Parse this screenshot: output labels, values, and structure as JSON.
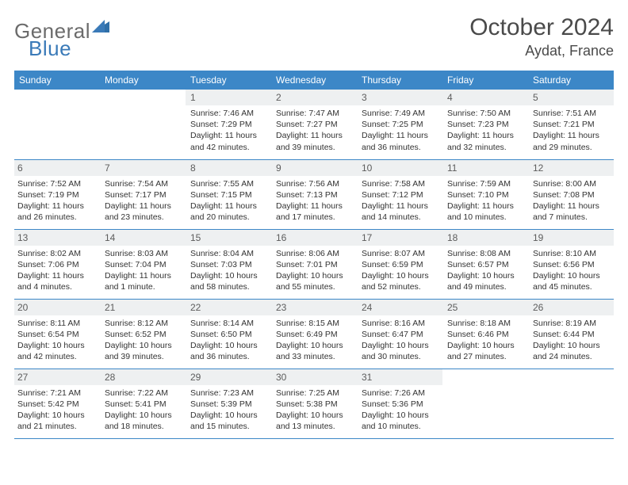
{
  "logo": {
    "text1": "General",
    "text2": "Blue"
  },
  "title": "October 2024",
  "location": "Aydat, France",
  "colors": {
    "header_bg": "#3c87c7",
    "header_text": "#ffffff",
    "daynum_bg": "#eef0f1",
    "border": "#3c87c7",
    "logo_gray": "#6b6b6b",
    "logo_blue": "#3a7ab8"
  },
  "days_of_week": [
    "Sunday",
    "Monday",
    "Tuesday",
    "Wednesday",
    "Thursday",
    "Friday",
    "Saturday"
  ],
  "weeks": [
    [
      null,
      null,
      {
        "n": "1",
        "sr": "Sunrise: 7:46 AM",
        "ss": "Sunset: 7:29 PM",
        "dl": "Daylight: 11 hours and 42 minutes."
      },
      {
        "n": "2",
        "sr": "Sunrise: 7:47 AM",
        "ss": "Sunset: 7:27 PM",
        "dl": "Daylight: 11 hours and 39 minutes."
      },
      {
        "n": "3",
        "sr": "Sunrise: 7:49 AM",
        "ss": "Sunset: 7:25 PM",
        "dl": "Daylight: 11 hours and 36 minutes."
      },
      {
        "n": "4",
        "sr": "Sunrise: 7:50 AM",
        "ss": "Sunset: 7:23 PM",
        "dl": "Daylight: 11 hours and 32 minutes."
      },
      {
        "n": "5",
        "sr": "Sunrise: 7:51 AM",
        "ss": "Sunset: 7:21 PM",
        "dl": "Daylight: 11 hours and 29 minutes."
      }
    ],
    [
      {
        "n": "6",
        "sr": "Sunrise: 7:52 AM",
        "ss": "Sunset: 7:19 PM",
        "dl": "Daylight: 11 hours and 26 minutes."
      },
      {
        "n": "7",
        "sr": "Sunrise: 7:54 AM",
        "ss": "Sunset: 7:17 PM",
        "dl": "Daylight: 11 hours and 23 minutes."
      },
      {
        "n": "8",
        "sr": "Sunrise: 7:55 AM",
        "ss": "Sunset: 7:15 PM",
        "dl": "Daylight: 11 hours and 20 minutes."
      },
      {
        "n": "9",
        "sr": "Sunrise: 7:56 AM",
        "ss": "Sunset: 7:13 PM",
        "dl": "Daylight: 11 hours and 17 minutes."
      },
      {
        "n": "10",
        "sr": "Sunrise: 7:58 AM",
        "ss": "Sunset: 7:12 PM",
        "dl": "Daylight: 11 hours and 14 minutes."
      },
      {
        "n": "11",
        "sr": "Sunrise: 7:59 AM",
        "ss": "Sunset: 7:10 PM",
        "dl": "Daylight: 11 hours and 10 minutes."
      },
      {
        "n": "12",
        "sr": "Sunrise: 8:00 AM",
        "ss": "Sunset: 7:08 PM",
        "dl": "Daylight: 11 hours and 7 minutes."
      }
    ],
    [
      {
        "n": "13",
        "sr": "Sunrise: 8:02 AM",
        "ss": "Sunset: 7:06 PM",
        "dl": "Daylight: 11 hours and 4 minutes."
      },
      {
        "n": "14",
        "sr": "Sunrise: 8:03 AM",
        "ss": "Sunset: 7:04 PM",
        "dl": "Daylight: 11 hours and 1 minute."
      },
      {
        "n": "15",
        "sr": "Sunrise: 8:04 AM",
        "ss": "Sunset: 7:03 PM",
        "dl": "Daylight: 10 hours and 58 minutes."
      },
      {
        "n": "16",
        "sr": "Sunrise: 8:06 AM",
        "ss": "Sunset: 7:01 PM",
        "dl": "Daylight: 10 hours and 55 minutes."
      },
      {
        "n": "17",
        "sr": "Sunrise: 8:07 AM",
        "ss": "Sunset: 6:59 PM",
        "dl": "Daylight: 10 hours and 52 minutes."
      },
      {
        "n": "18",
        "sr": "Sunrise: 8:08 AM",
        "ss": "Sunset: 6:57 PM",
        "dl": "Daylight: 10 hours and 49 minutes."
      },
      {
        "n": "19",
        "sr": "Sunrise: 8:10 AM",
        "ss": "Sunset: 6:56 PM",
        "dl": "Daylight: 10 hours and 45 minutes."
      }
    ],
    [
      {
        "n": "20",
        "sr": "Sunrise: 8:11 AM",
        "ss": "Sunset: 6:54 PM",
        "dl": "Daylight: 10 hours and 42 minutes."
      },
      {
        "n": "21",
        "sr": "Sunrise: 8:12 AM",
        "ss": "Sunset: 6:52 PM",
        "dl": "Daylight: 10 hours and 39 minutes."
      },
      {
        "n": "22",
        "sr": "Sunrise: 8:14 AM",
        "ss": "Sunset: 6:50 PM",
        "dl": "Daylight: 10 hours and 36 minutes."
      },
      {
        "n": "23",
        "sr": "Sunrise: 8:15 AM",
        "ss": "Sunset: 6:49 PM",
        "dl": "Daylight: 10 hours and 33 minutes."
      },
      {
        "n": "24",
        "sr": "Sunrise: 8:16 AM",
        "ss": "Sunset: 6:47 PM",
        "dl": "Daylight: 10 hours and 30 minutes."
      },
      {
        "n": "25",
        "sr": "Sunrise: 8:18 AM",
        "ss": "Sunset: 6:46 PM",
        "dl": "Daylight: 10 hours and 27 minutes."
      },
      {
        "n": "26",
        "sr": "Sunrise: 8:19 AM",
        "ss": "Sunset: 6:44 PM",
        "dl": "Daylight: 10 hours and 24 minutes."
      }
    ],
    [
      {
        "n": "27",
        "sr": "Sunrise: 7:21 AM",
        "ss": "Sunset: 5:42 PM",
        "dl": "Daylight: 10 hours and 21 minutes."
      },
      {
        "n": "28",
        "sr": "Sunrise: 7:22 AM",
        "ss": "Sunset: 5:41 PM",
        "dl": "Daylight: 10 hours and 18 minutes."
      },
      {
        "n": "29",
        "sr": "Sunrise: 7:23 AM",
        "ss": "Sunset: 5:39 PM",
        "dl": "Daylight: 10 hours and 15 minutes."
      },
      {
        "n": "30",
        "sr": "Sunrise: 7:25 AM",
        "ss": "Sunset: 5:38 PM",
        "dl": "Daylight: 10 hours and 13 minutes."
      },
      {
        "n": "31",
        "sr": "Sunrise: 7:26 AM",
        "ss": "Sunset: 5:36 PM",
        "dl": "Daylight: 10 hours and 10 minutes."
      },
      null,
      null
    ]
  ]
}
